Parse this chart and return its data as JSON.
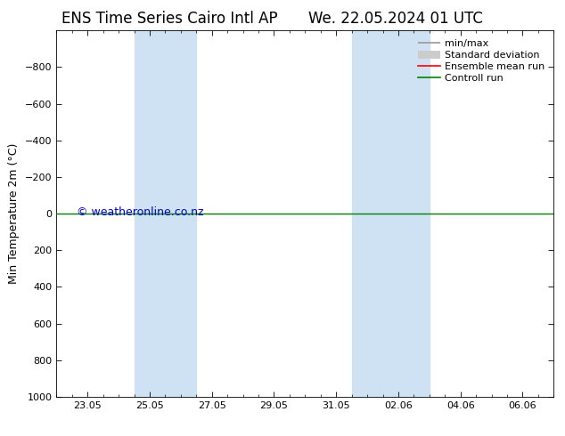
{
  "title_left": "ENS Time Series Cairo Intl AP",
  "title_right": "We. 22.05.2024 01 UTC",
  "ylabel": "Min Temperature 2m (°C)",
  "ylim_bottom": 1000,
  "ylim_top": -1000,
  "yticks": [
    -800,
    -600,
    -400,
    -200,
    0,
    200,
    400,
    600,
    800,
    1000
  ],
  "xtick_labels": [
    "23.05",
    "25.05",
    "27.05",
    "29.05",
    "31.05",
    "02.06",
    "04.06",
    "06.06"
  ],
  "xtick_positions": [
    1.0,
    3.0,
    5.0,
    7.0,
    9.0,
    11.0,
    13.0,
    15.0
  ],
  "x_min": 0.0,
  "x_max": 16.0,
  "shaded_bands": [
    {
      "x_start": 2.5,
      "x_end": 4.5
    },
    {
      "x_start": 9.5,
      "x_end": 12.0
    }
  ],
  "shaded_color": "#cfe2f3",
  "control_run_y": 0,
  "control_run_color": "#008000",
  "control_run_linewidth": 1.0,
  "ensemble_mean_color": "#ff0000",
  "minmax_color": "#999999",
  "std_dev_color": "#cccccc",
  "watermark": "© weatheronline.co.nz",
  "watermark_color": "#0000cc",
  "watermark_fontsize": 9,
  "title_fontsize": 12,
  "axis_fontsize": 8,
  "ylabel_fontsize": 9,
  "legend_fontsize": 8,
  "background_color": "#ffffff",
  "plot_bg_color": "#ffffff"
}
